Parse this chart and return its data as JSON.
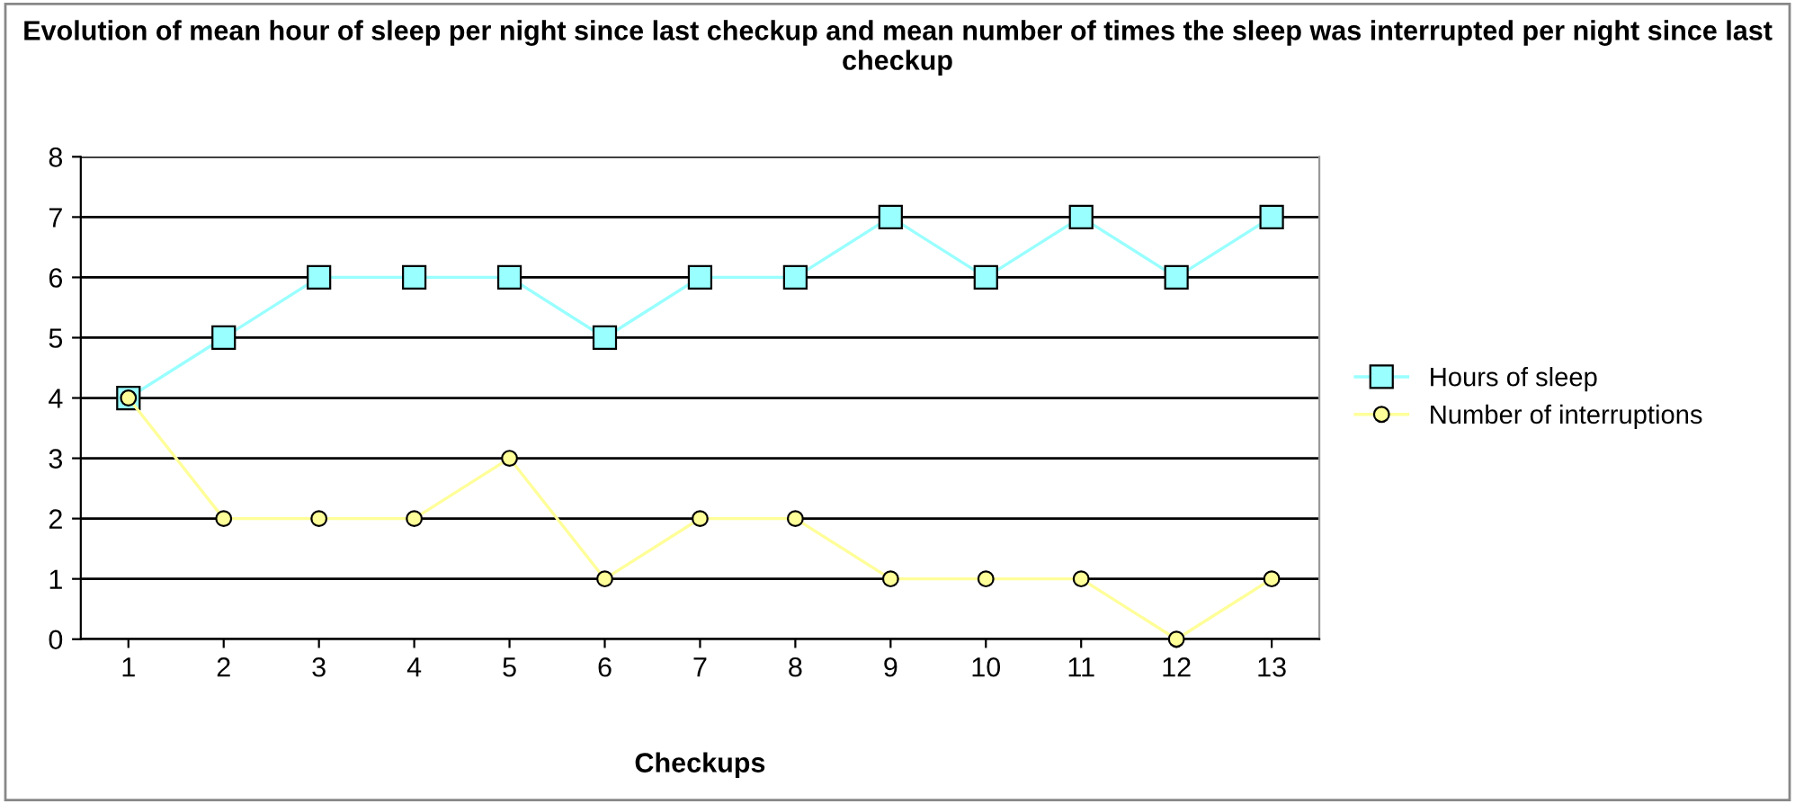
{
  "chart_data": {
    "type": "line",
    "title": "Evolution of mean hour of sleep per night since last checkup and mean number of times the sleep was interrupted per night since last checkup",
    "xlabel": "Checkups",
    "categories": [
      "1",
      "2",
      "3",
      "4",
      "5",
      "6",
      "7",
      "8",
      "9",
      "10",
      "11",
      "12",
      "13"
    ],
    "series": [
      {
        "name": "Hours of sleep",
        "color": "#99ffff",
        "marker": "square",
        "values": [
          4,
          5,
          6,
          6,
          6,
          5,
          6,
          6,
          7,
          6,
          7,
          6,
          7
        ]
      },
      {
        "name": "Number of interruptions",
        "color": "#ffff99",
        "marker": "circle",
        "values": [
          4,
          2,
          2,
          2,
          3,
          1,
          2,
          2,
          1,
          1,
          1,
          0,
          1
        ]
      }
    ],
    "ylim": [
      0,
      8
    ],
    "yticks": [
      0,
      1,
      2,
      3,
      4,
      5,
      6,
      7,
      8
    ],
    "grid": "y",
    "legend": "right",
    "line_style": "solid"
  }
}
